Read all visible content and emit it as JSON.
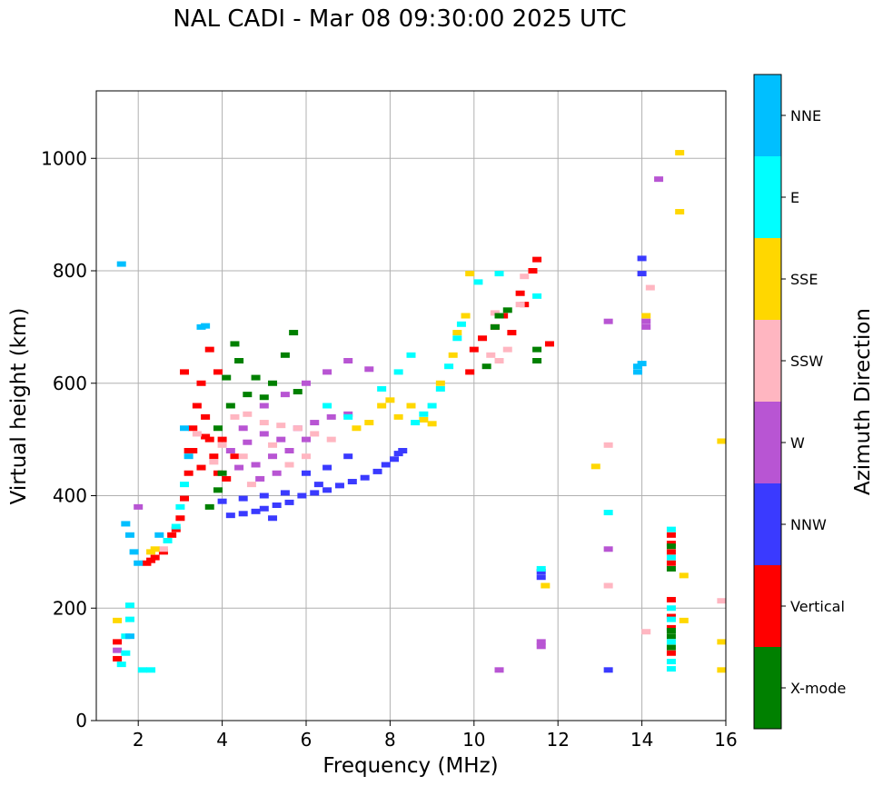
{
  "chart_data": {
    "type": "scatter",
    "title": "NAL CADI - Mar 08 09:30:00 2025 UTC",
    "xlabel": "Frequency (MHz)",
    "ylabel": "Virtual height (km)",
    "xlim": [
      1,
      16
    ],
    "ylim": [
      0,
      1120
    ],
    "xticks": [
      2,
      4,
      6,
      8,
      10,
      12,
      14,
      16
    ],
    "yticks": [
      0,
      200,
      400,
      600,
      800,
      1000
    ],
    "grid": true,
    "colorbar": {
      "label": "Azimuth Direction",
      "categories": [
        {
          "name": "X-mode",
          "color": "#008000"
        },
        {
          "name": "Vertical",
          "color": "#ff0000"
        },
        {
          "name": "NNW",
          "color": "#3a3aff"
        },
        {
          "name": "W",
          "color": "#b855d3"
        },
        {
          "name": "SSW",
          "color": "#ffb6c1"
        },
        {
          "name": "SSE",
          "color": "#ffd700"
        },
        {
          "name": "E",
          "color": "#00ffff"
        },
        {
          "name": "NNE",
          "color": "#00bfff"
        }
      ]
    },
    "series": [
      {
        "name": "NNW",
        "points": [
          [
            4.2,
            365
          ],
          [
            4.5,
            368
          ],
          [
            4.8,
            372
          ],
          [
            5.0,
            377
          ],
          [
            5.3,
            383
          ],
          [
            5.6,
            388
          ],
          [
            5.9,
            400
          ],
          [
            6.2,
            405
          ],
          [
            6.5,
            410
          ],
          [
            6.8,
            418
          ],
          [
            7.1,
            425
          ],
          [
            7.4,
            432
          ],
          [
            7.7,
            443
          ],
          [
            7.9,
            455
          ],
          [
            8.1,
            465
          ],
          [
            8.2,
            475
          ],
          [
            8.3,
            480
          ],
          [
            14.0,
            795
          ],
          [
            14.0,
            822
          ],
          [
            11.6,
            265
          ],
          [
            11.6,
            255
          ],
          [
            13.2,
            90
          ],
          [
            4.0,
            390
          ],
          [
            4.5,
            395
          ],
          [
            5.0,
            400
          ],
          [
            5.5,
            405
          ],
          [
            6.0,
            440
          ],
          [
            6.5,
            450
          ],
          [
            7.0,
            470
          ],
          [
            6.3,
            420
          ],
          [
            5.2,
            360
          ]
        ]
      },
      {
        "name": "Vertical",
        "points": [
          [
            2.4,
            290
          ],
          [
            2.3,
            285
          ],
          [
            2.2,
            280
          ],
          [
            2.6,
            300
          ],
          [
            2.8,
            330
          ],
          [
            3.0,
            360
          ],
          [
            3.1,
            395
          ],
          [
            3.2,
            440
          ],
          [
            3.3,
            480
          ],
          [
            3.3,
            520
          ],
          [
            3.4,
            560
          ],
          [
            3.5,
            600
          ],
          [
            3.6,
            540
          ],
          [
            3.7,
            500
          ],
          [
            3.8,
            470
          ],
          [
            3.9,
            440
          ],
          [
            4.0,
            500
          ],
          [
            3.9,
            620
          ],
          [
            3.7,
            660
          ],
          [
            4.1,
            430
          ],
          [
            4.3,
            470
          ],
          [
            3.5,
            450
          ],
          [
            2.9,
            340
          ],
          [
            10.2,
            680
          ],
          [
            10.5,
            700
          ],
          [
            10.7,
            720
          ],
          [
            10.9,
            690
          ],
          [
            11.2,
            740
          ],
          [
            11.4,
            800
          ],
          [
            11.5,
            820
          ],
          [
            11.1,
            760
          ],
          [
            10.0,
            660
          ],
          [
            9.9,
            620
          ],
          [
            11.8,
            670
          ],
          [
            14.7,
            330
          ],
          [
            14.7,
            315
          ],
          [
            14.7,
            300
          ],
          [
            14.7,
            280
          ],
          [
            14.7,
            215
          ],
          [
            14.7,
            185
          ],
          [
            14.7,
            165
          ],
          [
            14.7,
            120
          ],
          [
            1.5,
            140
          ],
          [
            1.5,
            110
          ],
          [
            3.2,
            480
          ],
          [
            3.6,
            505
          ],
          [
            3.1,
            620
          ]
        ]
      },
      {
        "name": "W",
        "points": [
          [
            4.2,
            480
          ],
          [
            4.6,
            495
          ],
          [
            5.0,
            510
          ],
          [
            5.4,
            500
          ],
          [
            5.8,
            520
          ],
          [
            6.2,
            530
          ],
          [
            6.6,
            540
          ],
          [
            7.0,
            545
          ],
          [
            4.4,
            450
          ],
          [
            4.8,
            455
          ],
          [
            5.2,
            470
          ],
          [
            5.6,
            480
          ],
          [
            6.0,
            500
          ],
          [
            4.5,
            520
          ],
          [
            5.0,
            560
          ],
          [
            5.5,
            580
          ],
          [
            6.0,
            600
          ],
          [
            6.5,
            620
          ],
          [
            7.0,
            640
          ],
          [
            7.5,
            625
          ],
          [
            5.3,
            440
          ],
          [
            4.9,
            430
          ],
          [
            13.2,
            710
          ],
          [
            14.1,
            710
          ],
          [
            14.1,
            700
          ],
          [
            13.2,
            305
          ],
          [
            11.6,
            140
          ],
          [
            11.6,
            132
          ],
          [
            10.6,
            90
          ],
          [
            14.4,
            963
          ],
          [
            1.5,
            125
          ],
          [
            2.0,
            380
          ]
        ]
      },
      {
        "name": "SSW",
        "points": [
          [
            4.3,
            540
          ],
          [
            4.6,
            545
          ],
          [
            5.0,
            530
          ],
          [
            5.4,
            525
          ],
          [
            5.8,
            520
          ],
          [
            6.2,
            510
          ],
          [
            6.6,
            500
          ],
          [
            4.0,
            490
          ],
          [
            4.5,
            470
          ],
          [
            5.2,
            490
          ],
          [
            6.0,
            470
          ],
          [
            3.8,
            460
          ],
          [
            3.4,
            510
          ],
          [
            10.4,
            650
          ],
          [
            10.6,
            640
          ],
          [
            10.8,
            660
          ],
          [
            11.1,
            740
          ],
          [
            13.2,
            240
          ],
          [
            13.2,
            490
          ],
          [
            14.1,
            158
          ],
          [
            15.9,
            213
          ],
          [
            11.2,
            790
          ],
          [
            10.5,
            725
          ],
          [
            2.6,
            305
          ],
          [
            4.7,
            420
          ],
          [
            5.6,
            455
          ],
          [
            14.2,
            770
          ]
        ]
      },
      {
        "name": "SSE",
        "points": [
          [
            2.3,
            300
          ],
          [
            2.4,
            305
          ],
          [
            8.0,
            570
          ],
          [
            8.2,
            540
          ],
          [
            8.5,
            560
          ],
          [
            8.8,
            535
          ],
          [
            9.0,
            528
          ],
          [
            9.2,
            600
          ],
          [
            9.5,
            650
          ],
          [
            9.6,
            690
          ],
          [
            9.8,
            720
          ],
          [
            9.9,
            795
          ],
          [
            7.2,
            520
          ],
          [
            7.5,
            530
          ],
          [
            7.8,
            560
          ],
          [
            11.7,
            240
          ],
          [
            12.9,
            452
          ],
          [
            14.9,
            1010
          ],
          [
            14.9,
            905
          ],
          [
            15.0,
            258
          ],
          [
            15.0,
            178
          ],
          [
            15.9,
            140
          ],
          [
            15.9,
            90
          ],
          [
            15.9,
            497
          ],
          [
            14.1,
            720
          ],
          [
            1.5,
            178
          ]
        ]
      },
      {
        "name": "E",
        "points": [
          [
            1.6,
            100
          ],
          [
            1.7,
            120
          ],
          [
            1.7,
            150
          ],
          [
            1.8,
            180
          ],
          [
            1.8,
            205
          ],
          [
            2.7,
            320
          ],
          [
            2.9,
            345
          ],
          [
            3.0,
            380
          ],
          [
            3.1,
            420
          ],
          [
            8.6,
            530
          ],
          [
            8.8,
            545
          ],
          [
            9.0,
            560
          ],
          [
            9.2,
            590
          ],
          [
            9.4,
            630
          ],
          [
            9.6,
            680
          ],
          [
            9.7,
            705
          ],
          [
            10.6,
            795
          ],
          [
            10.1,
            780
          ],
          [
            8.5,
            650
          ],
          [
            8.2,
            620
          ],
          [
            7.8,
            590
          ],
          [
            11.6,
            270
          ],
          [
            13.2,
            370
          ],
          [
            14.7,
            200
          ],
          [
            14.7,
            180
          ],
          [
            14.7,
            160
          ],
          [
            14.7,
            140
          ],
          [
            14.7,
            105
          ],
          [
            14.7,
            92
          ],
          [
            14.7,
            340
          ],
          [
            14.7,
            290
          ],
          [
            11.5,
            755
          ],
          [
            7.0,
            540
          ],
          [
            6.5,
            560
          ],
          [
            2.1,
            90
          ],
          [
            2.3,
            90
          ]
        ]
      },
      {
        "name": "NNE",
        "points": [
          [
            1.6,
            812
          ],
          [
            1.7,
            350
          ],
          [
            1.8,
            330
          ],
          [
            1.9,
            300
          ],
          [
            2.0,
            280
          ],
          [
            2.5,
            330
          ],
          [
            13.9,
            630
          ],
          [
            13.9,
            620
          ],
          [
            14.0,
            635
          ],
          [
            3.5,
            700
          ],
          [
            3.6,
            702
          ],
          [
            3.1,
            520
          ],
          [
            3.2,
            470
          ],
          [
            1.8,
            150
          ]
        ]
      },
      {
        "name": "X-mode",
        "points": [
          [
            4.3,
            670
          ],
          [
            5.2,
            600
          ],
          [
            5.5,
            650
          ],
          [
            4.6,
            580
          ],
          [
            5.0,
            575
          ],
          [
            4.2,
            560
          ],
          [
            4.8,
            610
          ],
          [
            4.4,
            640
          ],
          [
            3.9,
            410
          ],
          [
            4.0,
            440
          ],
          [
            4.1,
            610
          ],
          [
            5.7,
            690
          ],
          [
            10.6,
            720
          ],
          [
            10.8,
            730
          ],
          [
            10.5,
            700
          ],
          [
            11.5,
            660
          ],
          [
            11.5,
            640
          ],
          [
            10.3,
            630
          ],
          [
            14.7,
            310
          ],
          [
            14.7,
            270
          ],
          [
            14.7,
            160
          ],
          [
            14.7,
            150
          ],
          [
            14.7,
            130
          ],
          [
            3.7,
            380
          ],
          [
            3.9,
            520
          ],
          [
            5.8,
            585
          ]
        ]
      }
    ]
  }
}
